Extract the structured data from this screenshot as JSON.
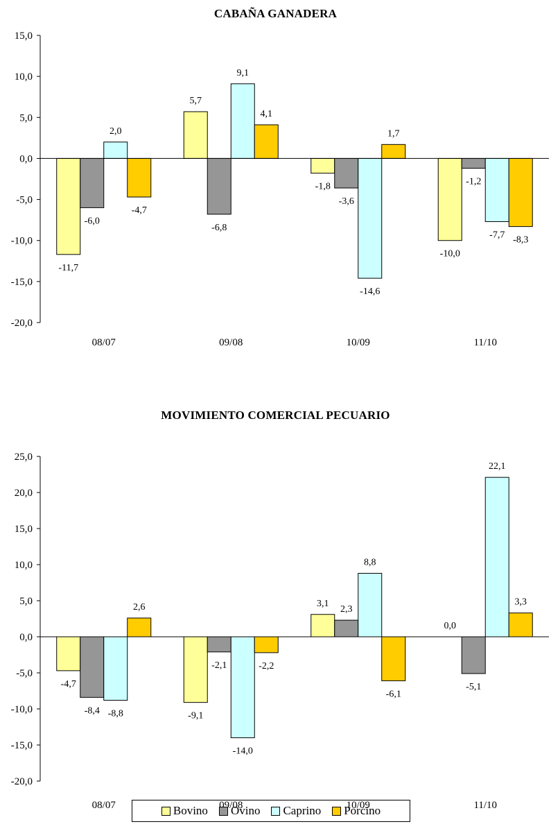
{
  "colors": {
    "Bovino": "#FFFF99",
    "Ovino": "#969696",
    "Caprino": "#CCFFFF",
    "Porcino": "#FFCC00"
  },
  "legend": {
    "items": [
      "Bovino",
      "Ovino",
      "Caprino",
      "Porcino"
    ]
  },
  "chart_data": [
    {
      "type": "bar",
      "title": "CABAÑA GANADERA",
      "categories": [
        "08/07",
        "09/08",
        "10/09",
        "11/10"
      ],
      "ylim": [
        -20,
        15
      ],
      "yticks": [
        "15,0",
        "10,0",
        "5,0",
        "0,0",
        "-5,0",
        "-10,0",
        "-15,0",
        "-20,0"
      ],
      "grid": false,
      "series": [
        {
          "name": "Bovino",
          "values": [
            -11.7,
            5.7,
            -1.8,
            -10.0
          ],
          "labels": [
            "-11,7",
            "5,7",
            "-1,8",
            "-10,0"
          ]
        },
        {
          "name": "Ovino",
          "values": [
            -6.0,
            -6.8,
            -3.6,
            -1.2
          ],
          "labels": [
            "-6,0",
            "-6,8",
            "-3,6",
            "-1,2"
          ]
        },
        {
          "name": "Caprino",
          "values": [
            2.0,
            9.1,
            -14.6,
            -7.7
          ],
          "labels": [
            "2,0",
            "9,1",
            "-14,6",
            "-7,7"
          ]
        },
        {
          "name": "Porcino",
          "values": [
            -4.7,
            4.1,
            1.7,
            -8.3
          ],
          "labels": [
            "-4,7",
            "4,1",
            "1,7",
            "-8,3"
          ]
        }
      ]
    },
    {
      "type": "bar",
      "title": "MOVIMIENTO COMERCIAL PECUARIO",
      "categories": [
        "08/07",
        "09/08",
        "10/09",
        "11/10"
      ],
      "ylim": [
        -20,
        25
      ],
      "yticks": [
        "25,0",
        "20,0",
        "15,0",
        "10,0",
        "5,0",
        "0,0",
        "-5,0",
        "-10,0",
        "-15,0",
        "-20,0"
      ],
      "grid": false,
      "legend_position": "bottom",
      "series": [
        {
          "name": "Bovino",
          "values": [
            -4.7,
            -9.1,
            3.1,
            0.0
          ],
          "labels": [
            "-4,7",
            "-9,1",
            "3,1",
            "0,0"
          ]
        },
        {
          "name": "Ovino",
          "values": [
            -8.4,
            -2.1,
            2.3,
            -5.1
          ],
          "labels": [
            "-8,4",
            "-2,1",
            "2,3",
            "-5,1"
          ]
        },
        {
          "name": "Caprino",
          "values": [
            -8.8,
            -14.0,
            8.8,
            22.1
          ],
          "labels": [
            "-8,8",
            "-14,0",
            "8,8",
            "22,1"
          ]
        },
        {
          "name": "Porcino",
          "values": [
            2.6,
            -2.2,
            -6.1,
            3.3
          ],
          "labels": [
            "2,6",
            "-2,2",
            "-6,1",
            "3,3"
          ]
        }
      ]
    }
  ]
}
